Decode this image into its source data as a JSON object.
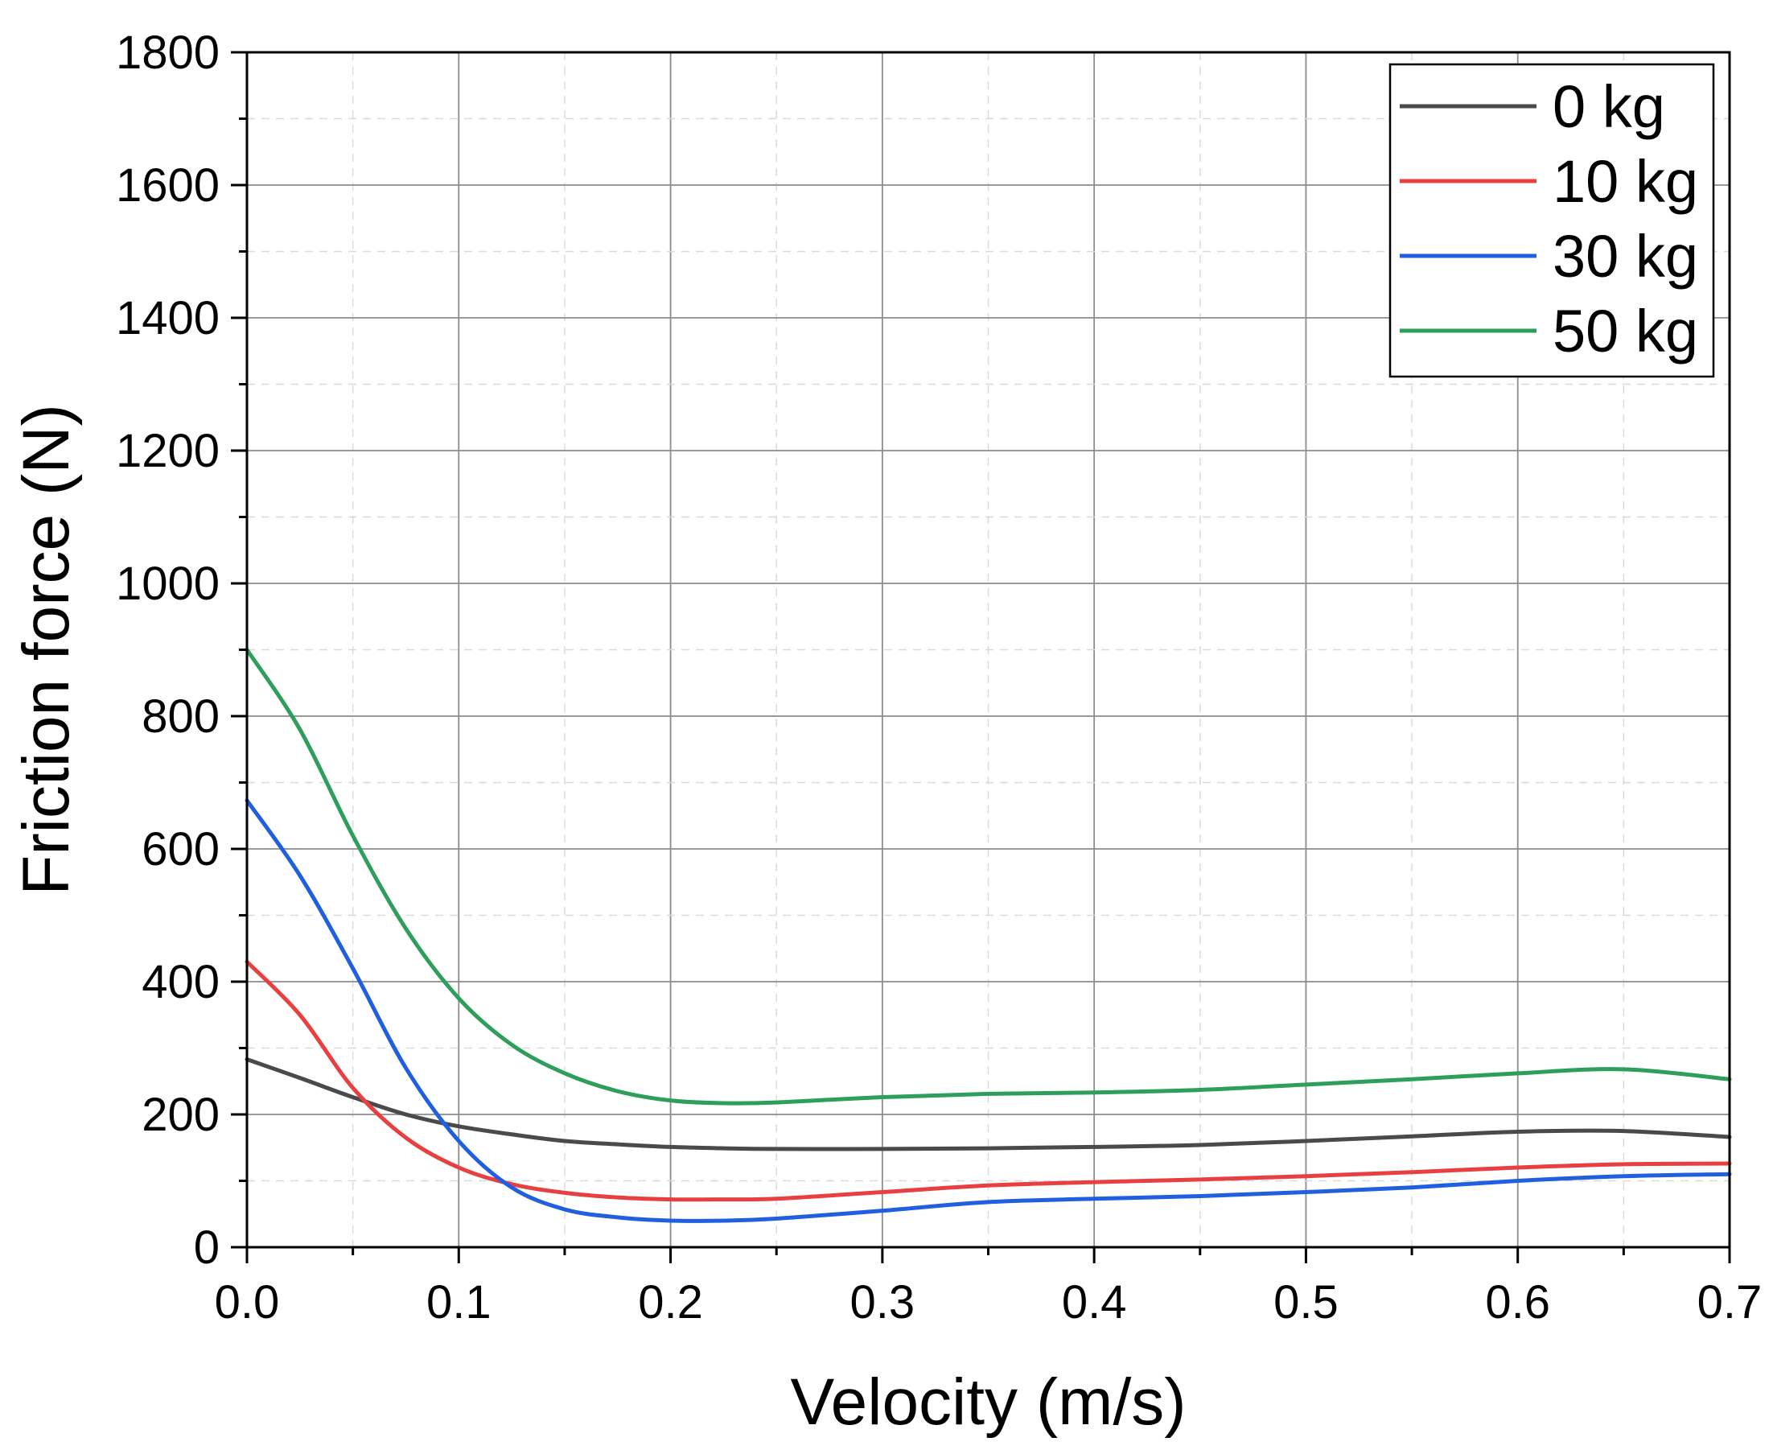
{
  "chart_data": {
    "type": "line",
    "title": "",
    "xlabel": "Velocity (m/s)",
    "ylabel": "Friction force (N)",
    "xlim": [
      0,
      0.7
    ],
    "ylim": [
      0,
      1800
    ],
    "x_ticks": [
      "0.0",
      "0.1",
      "0.2",
      "0.3",
      "0.4",
      "0.5",
      "0.6",
      "0.7"
    ],
    "y_ticks": [
      "0",
      "200",
      "400",
      "600",
      "800",
      "1000",
      "1200",
      "1400",
      "1600",
      "1800"
    ],
    "grid": true,
    "legend_position": "top-right",
    "x": [
      0,
      0.025,
      0.05,
      0.075,
      0.1,
      0.125,
      0.15,
      0.175,
      0.2,
      0.225,
      0.25,
      0.3,
      0.35,
      0.4,
      0.45,
      0.5,
      0.55,
      0.6,
      0.65,
      0.7
    ],
    "series": [
      {
        "name": "0 kg",
        "color": "#4a4a4a",
        "values": [
          283,
          255,
          226,
          200,
          182,
          170,
          160,
          155,
          151,
          149,
          148,
          148,
          149,
          151,
          154,
          160,
          167,
          174,
          175,
          166
        ]
      },
      {
        "name": "10 kg",
        "color": "#e84040",
        "values": [
          430,
          350,
          240,
          165,
          120,
          95,
          82,
          75,
          72,
          72,
          73,
          83,
          93,
          98,
          102,
          107,
          113,
          120,
          125,
          126
        ]
      },
      {
        "name": "30 kg",
        "color": "#1f5fe0",
        "values": [
          673,
          560,
          420,
          270,
          160,
          90,
          57,
          45,
          40,
          40,
          43,
          55,
          68,
          73,
          77,
          83,
          90,
          100,
          107,
          110
        ]
      },
      {
        "name": "50 kg",
        "color": "#2e9e5b",
        "values": [
          900,
          780,
          620,
          480,
          375,
          305,
          262,
          235,
          221,
          217,
          218,
          226,
          231,
          233,
          237,
          245,
          253,
          262,
          268,
          253
        ]
      }
    ]
  }
}
